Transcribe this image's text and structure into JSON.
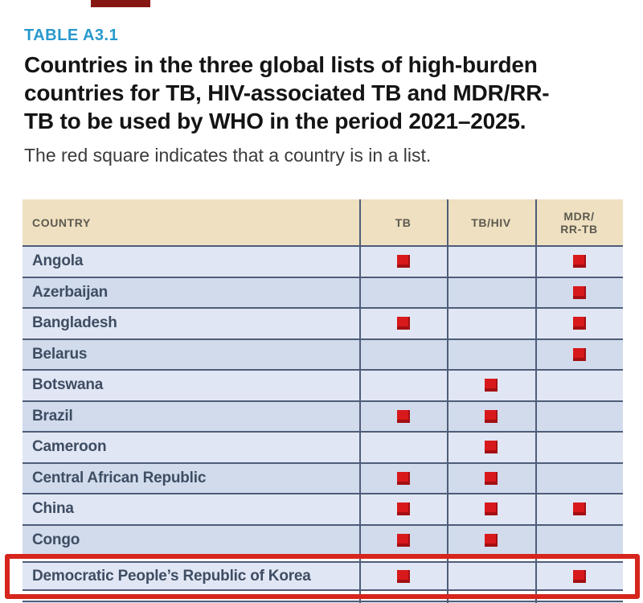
{
  "annotations": {
    "top_artifact_color": "#871713",
    "highlight_box_color": "#d6251d",
    "highlighted_country": "Democratic People’s Republic of Korea"
  },
  "header": {
    "table_label": "TABLE A3.1",
    "title_lines": [
      "Countries in the three global lists of high-burden",
      "countries for TB, HIV-associated TB and MDR/RR-",
      "TB to be used by WHO in the period 2021–2025."
    ],
    "subtitle": "The red square indicates that a country is in a list."
  },
  "table": {
    "country_header": "COUNTRY",
    "list_headers": [
      "TB",
      "TB/HIV",
      "MDR/\nRR-TB"
    ],
    "rows": [
      {
        "country": "Angola",
        "marks": [
          true,
          false,
          true
        ]
      },
      {
        "country": "Azerbaijan",
        "marks": [
          false,
          false,
          true
        ]
      },
      {
        "country": "Bangladesh",
        "marks": [
          true,
          false,
          true
        ]
      },
      {
        "country": "Belarus",
        "marks": [
          false,
          false,
          true
        ]
      },
      {
        "country": "Botswana",
        "marks": [
          false,
          true,
          false
        ]
      },
      {
        "country": "Brazil",
        "marks": [
          true,
          true,
          false
        ]
      },
      {
        "country": "Cameroon",
        "marks": [
          false,
          true,
          false
        ]
      },
      {
        "country": "Central African Republic",
        "marks": [
          true,
          true,
          false
        ]
      },
      {
        "country": "China",
        "marks": [
          true,
          true,
          true
        ]
      },
      {
        "country": "Congo",
        "marks": [
          true,
          true,
          false
        ]
      },
      {
        "country": "Democratic People’s Republic of Korea",
        "marks": [
          true,
          false,
          true
        ],
        "highlighted": true
      }
    ],
    "colors": {
      "header_bg": "#eee0c0",
      "row_light": "#e0e6f3",
      "row_dark": "#d1dbec",
      "grid_line": "#4e5d78",
      "mark_red": "#d8191c",
      "title_blue": "#2799cc"
    }
  }
}
